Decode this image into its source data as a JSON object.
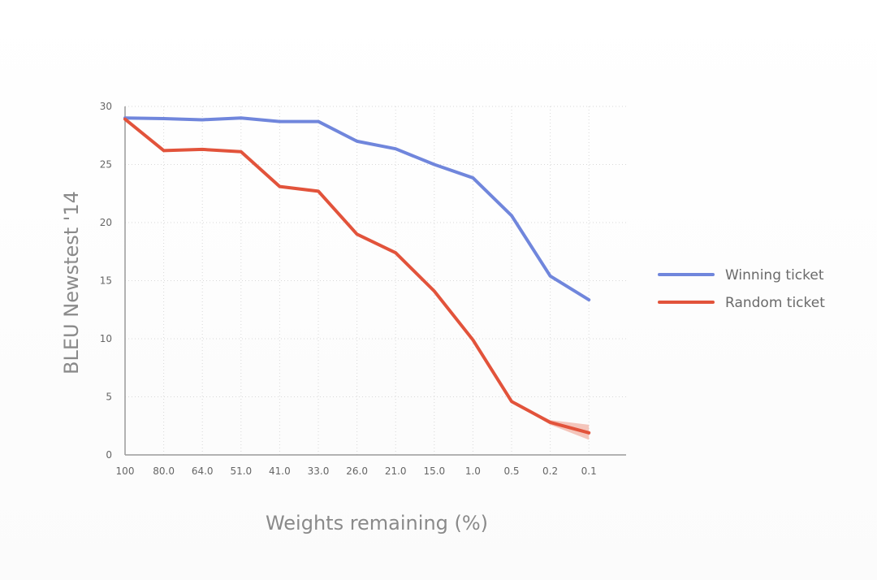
{
  "chart_data": {
    "type": "line",
    "title": "",
    "xlabel": "Weights remaining (%)",
    "ylabel": "BLEU Newstest '14",
    "categories": [
      "100",
      "80.0",
      "64.0",
      "51.0",
      "41.0",
      "33.0",
      "26.0",
      "21.0",
      "15.0",
      "1.0",
      "0.5",
      "0.2",
      "0.1"
    ],
    "ylim": [
      0,
      30
    ],
    "yticks": [
      0,
      5,
      10,
      15,
      20,
      25,
      30
    ],
    "grid": true,
    "legend_position": "right",
    "series": [
      {
        "name": "Winning ticket",
        "color": "#7086dc",
        "values": [
          29.0,
          28.95,
          28.85,
          29.0,
          28.7,
          28.7,
          27.0,
          26.35,
          25.0,
          23.85,
          20.6,
          15.4,
          13.35
        ]
      },
      {
        "name": "Random ticket",
        "color": "#e2533b",
        "values": [
          28.9,
          26.2,
          26.3,
          26.1,
          23.1,
          22.7,
          19.0,
          17.4,
          14.1,
          9.9,
          4.6,
          2.8,
          1.9
        ],
        "band_color": "#f2b3a6",
        "lower": [
          28.9,
          26.2,
          26.3,
          26.1,
          23.1,
          22.7,
          19.0,
          17.4,
          14.1,
          9.9,
          4.55,
          2.6,
          1.3
        ],
        "upper": [
          28.9,
          26.2,
          26.3,
          26.1,
          23.1,
          22.7,
          19.0,
          17.4,
          14.1,
          9.9,
          4.65,
          3.0,
          2.6
        ]
      }
    ]
  }
}
